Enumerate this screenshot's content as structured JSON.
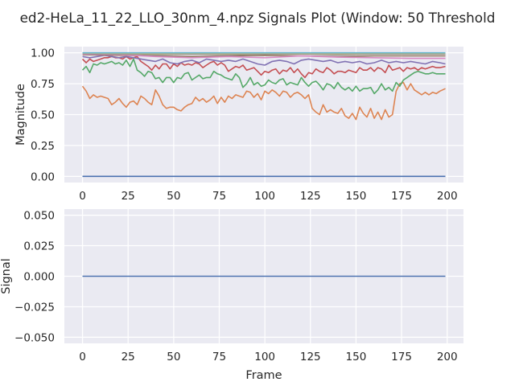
{
  "title": "ed2-HeLa_11_22_LLO_30nm_4.npz Signals Plot (Window: 50 Threshold",
  "chart_data": [
    {
      "type": "line",
      "xlabel": "",
      "ylabel": "Magnitude",
      "xlim": [
        -9.95,
        208.95
      ],
      "ylim": [
        -0.05,
        1.05
      ],
      "xticks": [
        "0",
        "25",
        "50",
        "75",
        "100",
        "125",
        "150",
        "175",
        "200"
      ],
      "yticks": [
        "0.00",
        "0.25",
        "0.50",
        "0.75",
        "1.00"
      ],
      "grid": true,
      "series": [
        {
          "color": "#4c72b0",
          "x": [
            0,
            199
          ],
          "y": [
            0.0,
            0.0
          ]
        },
        {
          "color": "#dd8452",
          "x": [
            0,
            2,
            4,
            6,
            8,
            10,
            12,
            14,
            16,
            18,
            20,
            22,
            24,
            26,
            28,
            30,
            32,
            34,
            36,
            38,
            40,
            42,
            44,
            46,
            48,
            50,
            52,
            54,
            56,
            58,
            60,
            62,
            64,
            66,
            68,
            70,
            72,
            74,
            76,
            78,
            80,
            82,
            84,
            86,
            88,
            90,
            92,
            94,
            96,
            98,
            100,
            102,
            104,
            106,
            108,
            110,
            112,
            114,
            116,
            118,
            120,
            122,
            124,
            126,
            128,
            130,
            132,
            134,
            136,
            138,
            140,
            142,
            144,
            146,
            148,
            150,
            152,
            154,
            156,
            158,
            160,
            162,
            164,
            166,
            168,
            170,
            172,
            174,
            176,
            178,
            180,
            182,
            184,
            186,
            188,
            190,
            192,
            194,
            196,
            199
          ],
          "y": [
            0.73,
            0.69,
            0.63,
            0.66,
            0.64,
            0.65,
            0.64,
            0.63,
            0.58,
            0.6,
            0.63,
            0.59,
            0.56,
            0.6,
            0.61,
            0.58,
            0.65,
            0.63,
            0.6,
            0.58,
            0.7,
            0.65,
            0.58,
            0.55,
            0.56,
            0.56,
            0.54,
            0.53,
            0.56,
            0.58,
            0.59,
            0.64,
            0.61,
            0.63,
            0.6,
            0.62,
            0.65,
            0.59,
            0.64,
            0.6,
            0.65,
            0.63,
            0.66,
            0.65,
            0.64,
            0.69,
            0.68,
            0.64,
            0.67,
            0.62,
            0.69,
            0.67,
            0.7,
            0.68,
            0.65,
            0.69,
            0.68,
            0.64,
            0.67,
            0.68,
            0.66,
            0.63,
            0.66,
            0.55,
            0.52,
            0.5,
            0.58,
            0.52,
            0.54,
            0.52,
            0.51,
            0.55,
            0.49,
            0.47,
            0.51,
            0.46,
            0.56,
            0.51,
            0.48,
            0.55,
            0.47,
            0.52,
            0.46,
            0.54,
            0.48,
            0.5,
            0.69,
            0.75,
            0.76,
            0.7,
            0.75,
            0.7,
            0.68,
            0.66,
            0.68,
            0.66,
            0.68,
            0.67,
            0.69,
            0.71
          ]
        },
        {
          "color": "#55a868",
          "x": [
            0,
            2,
            4,
            6,
            8,
            10,
            12,
            14,
            16,
            18,
            20,
            22,
            24,
            26,
            28,
            30,
            32,
            34,
            36,
            38,
            40,
            42,
            44,
            46,
            48,
            50,
            52,
            54,
            56,
            58,
            60,
            62,
            64,
            66,
            68,
            70,
            72,
            74,
            76,
            78,
            80,
            82,
            84,
            86,
            88,
            90,
            92,
            94,
            96,
            98,
            100,
            102,
            104,
            106,
            108,
            110,
            112,
            114,
            116,
            118,
            120,
            122,
            124,
            126,
            128,
            130,
            132,
            134,
            136,
            138,
            140,
            142,
            144,
            146,
            148,
            150,
            152,
            154,
            156,
            158,
            160,
            162,
            164,
            166,
            168,
            170,
            172,
            174,
            176,
            178,
            180,
            182,
            184,
            186,
            188,
            190,
            192,
            194,
            196,
            199
          ],
          "y": [
            0.86,
            0.89,
            0.84,
            0.91,
            0.9,
            0.92,
            0.91,
            0.92,
            0.93,
            0.91,
            0.92,
            0.9,
            0.94,
            0.89,
            0.95,
            0.86,
            0.84,
            0.81,
            0.85,
            0.84,
            0.79,
            0.8,
            0.76,
            0.8,
            0.8,
            0.76,
            0.8,
            0.79,
            0.83,
            0.84,
            0.78,
            0.8,
            0.82,
            0.79,
            0.8,
            0.8,
            0.85,
            0.83,
            0.82,
            0.8,
            0.79,
            0.78,
            0.83,
            0.8,
            0.72,
            0.75,
            0.8,
            0.74,
            0.76,
            0.73,
            0.74,
            0.78,
            0.76,
            0.75,
            0.78,
            0.79,
            0.74,
            0.76,
            0.75,
            0.74,
            0.8,
            0.76,
            0.73,
            0.76,
            0.77,
            0.74,
            0.7,
            0.75,
            0.74,
            0.71,
            0.76,
            0.72,
            0.7,
            0.72,
            0.69,
            0.73,
            0.69,
            0.71,
            0.71,
            0.72,
            0.67,
            0.7,
            0.75,
            0.7,
            0.72,
            0.69,
            0.76,
            0.73,
            0.78,
            0.8,
            0.82,
            0.84,
            0.85,
            0.84,
            0.83,
            0.83,
            0.84,
            0.83,
            0.83,
            0.83
          ]
        },
        {
          "color": "#c44e52",
          "x": [
            0,
            2,
            4,
            6,
            8,
            10,
            12,
            14,
            16,
            18,
            20,
            22,
            24,
            26,
            28,
            30,
            32,
            34,
            36,
            38,
            40,
            42,
            44,
            46,
            48,
            50,
            52,
            54,
            56,
            58,
            60,
            62,
            64,
            66,
            68,
            70,
            72,
            74,
            76,
            78,
            80,
            82,
            84,
            86,
            88,
            90,
            92,
            94,
            96,
            98,
            100,
            102,
            104,
            106,
            108,
            110,
            112,
            114,
            116,
            118,
            120,
            122,
            124,
            126,
            128,
            130,
            132,
            134,
            136,
            138,
            140,
            142,
            144,
            146,
            148,
            150,
            152,
            154,
            156,
            158,
            160,
            162,
            164,
            166,
            168,
            170,
            172,
            174,
            176,
            178,
            180,
            182,
            184,
            186,
            188,
            190,
            192,
            194,
            196,
            199
          ],
          "y": [
            0.95,
            0.92,
            0.95,
            0.93,
            0.94,
            0.95,
            0.96,
            0.96,
            0.97,
            0.96,
            0.96,
            0.95,
            0.97,
            0.95,
            0.96,
            0.97,
            0.93,
            0.91,
            0.89,
            0.86,
            0.9,
            0.87,
            0.91,
            0.91,
            0.87,
            0.91,
            0.89,
            0.92,
            0.9,
            0.91,
            0.9,
            0.92,
            0.91,
            0.88,
            0.9,
            0.92,
            0.93,
            0.9,
            0.92,
            0.9,
            0.85,
            0.87,
            0.89,
            0.88,
            0.9,
            0.86,
            0.87,
            0.88,
            0.85,
            0.82,
            0.85,
            0.84,
            0.86,
            0.87,
            0.83,
            0.86,
            0.85,
            0.88,
            0.84,
            0.87,
            0.83,
            0.8,
            0.84,
            0.83,
            0.87,
            0.85,
            0.84,
            0.88,
            0.86,
            0.83,
            0.85,
            0.85,
            0.84,
            0.86,
            0.85,
            0.84,
            0.88,
            0.86,
            0.86,
            0.88,
            0.85,
            0.88,
            0.87,
            0.84,
            0.9,
            0.86,
            0.87,
            0.88,
            0.85,
            0.88,
            0.87,
            0.88,
            0.86,
            0.88,
            0.87,
            0.88,
            0.89,
            0.88,
            0.88,
            0.89
          ]
        },
        {
          "color": "#8172b3",
          "x": [
            0,
            4,
            8,
            12,
            16,
            20,
            24,
            28,
            32,
            36,
            40,
            44,
            48,
            52,
            56,
            60,
            64,
            68,
            72,
            76,
            80,
            84,
            88,
            92,
            96,
            100,
            104,
            108,
            112,
            116,
            120,
            124,
            128,
            132,
            136,
            140,
            144,
            148,
            152,
            156,
            160,
            164,
            168,
            172,
            176,
            180,
            184,
            188,
            192,
            196,
            199
          ],
          "y": [
            0.97,
            0.96,
            0.97,
            0.98,
            0.97,
            0.96,
            0.97,
            0.96,
            0.95,
            0.94,
            0.93,
            0.95,
            0.92,
            0.91,
            0.93,
            0.94,
            0.92,
            0.95,
            0.94,
            0.93,
            0.94,
            0.93,
            0.95,
            0.93,
            0.91,
            0.9,
            0.93,
            0.94,
            0.93,
            0.91,
            0.94,
            0.95,
            0.94,
            0.93,
            0.94,
            0.92,
            0.93,
            0.92,
            0.93,
            0.91,
            0.92,
            0.94,
            0.92,
            0.93,
            0.92,
            0.93,
            0.92,
            0.91,
            0.93,
            0.92,
            0.91
          ]
        },
        {
          "color": "#937860",
          "x": [
            0,
            20,
            40,
            60,
            80,
            100,
            120,
            140,
            160,
            180,
            199
          ],
          "y": [
            0.985,
            0.98,
            0.975,
            0.97,
            0.975,
            0.98,
            0.975,
            0.97,
            0.975,
            0.975,
            0.975
          ]
        },
        {
          "color": "#da8bc3",
          "x": [
            0,
            20,
            40,
            60,
            80,
            100,
            120,
            140,
            160,
            180,
            199
          ],
          "y": [
            0.99,
            0.985,
            0.97,
            0.96,
            0.97,
            0.96,
            0.975,
            0.965,
            0.96,
            0.955,
            0.955
          ]
        },
        {
          "color": "#8c8c8c",
          "x": [
            0,
            20,
            40,
            60,
            80,
            100,
            120,
            140,
            160,
            180,
            199
          ],
          "y": [
            0.995,
            0.99,
            0.985,
            0.99,
            0.985,
            0.99,
            0.99,
            0.985,
            0.99,
            0.99,
            0.99
          ]
        },
        {
          "color": "#ccb974",
          "x": [
            0,
            20,
            40,
            60,
            80,
            100,
            120,
            140,
            160,
            180,
            199
          ],
          "y": [
            0.997,
            0.995,
            0.993,
            0.995,
            0.993,
            0.995,
            0.994,
            0.993,
            0.995,
            0.995,
            0.995
          ]
        },
        {
          "color": "#64b5cd",
          "x": [
            0,
            20,
            40,
            60,
            80,
            100,
            120,
            140,
            160,
            180,
            199
          ],
          "y": [
            1.0,
            1.0,
            1.0,
            1.0,
            1.0,
            1.0,
            1.0,
            1.0,
            1.0,
            1.0,
            1.0
          ]
        }
      ]
    },
    {
      "type": "line",
      "xlabel": "Frame",
      "ylabel": "Signal",
      "xlim": [
        -9.95,
        208.95
      ],
      "ylim": [
        -0.055,
        0.055
      ],
      "xticks": [
        "0",
        "25",
        "50",
        "75",
        "100",
        "125",
        "150",
        "175",
        "200"
      ],
      "yticks": [
        "−0.050",
        "−0.025",
        "0.000",
        "0.025",
        "0.050"
      ],
      "grid": true,
      "series": [
        {
          "color": "#4c72b0",
          "x": [
            0,
            199
          ],
          "y": [
            0.0,
            0.0
          ]
        }
      ]
    }
  ]
}
